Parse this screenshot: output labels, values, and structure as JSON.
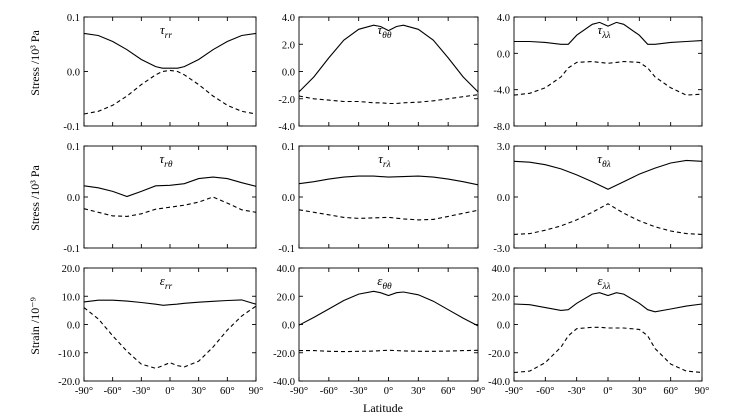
{
  "chart_data": {
    "type": "line",
    "figure": {
      "xlabel": "Latitude",
      "row_ylabels": [
        "Stress /10³ Pa",
        "Stress /10³ Pa",
        "Strain /10⁻⁹"
      ],
      "x_ticks": [
        "-90°",
        "-60°",
        "-30°",
        "0°",
        "30°",
        "60°",
        "90°"
      ],
      "xlim": [
        -90,
        90
      ]
    },
    "panels": [
      {
        "id": "tau_rr",
        "title_base": "τ",
        "title_sub": "rr",
        "ylim": [
          -0.1,
          0.1
        ],
        "y_ticks": [
          "0.1",
          "0.0",
          "-0.1"
        ],
        "y_tick_values": [
          0.1,
          0.0,
          -0.1
        ],
        "x": [
          -90,
          -75,
          -60,
          -45,
          -30,
          -15,
          -8,
          0,
          8,
          15,
          30,
          45,
          60,
          75,
          90
        ],
        "series": [
          {
            "name": "solid",
            "style": "solid",
            "values": [
              0.07,
              0.066,
              0.055,
              0.04,
              0.022,
              0.009,
              0.006,
              0.006,
              0.006,
              0.009,
              0.022,
              0.04,
              0.055,
              0.066,
              0.07
            ]
          },
          {
            "name": "dashed",
            "style": "dashed",
            "values": [
              -0.078,
              -0.073,
              -0.062,
              -0.045,
              -0.024,
              -0.006,
              0.0,
              0.002,
              0.0,
              -0.006,
              -0.024,
              -0.045,
              -0.062,
              -0.073,
              -0.078
            ]
          }
        ]
      },
      {
        "id": "tau_thth",
        "title_base": "τ",
        "title_sub": "θθ",
        "ylim": [
          -4.0,
          4.0
        ],
        "y_ticks": [
          "4.0",
          "2.0",
          "0.0",
          "-2.0",
          "-4.0"
        ],
        "y_tick_values": [
          4.0,
          2.0,
          0.0,
          -2.0,
          -4.0
        ],
        "x": [
          -90,
          -75,
          -60,
          -45,
          -30,
          -15,
          -8,
          0,
          8,
          15,
          30,
          45,
          60,
          75,
          90
        ],
        "series": [
          {
            "name": "solid",
            "style": "solid",
            "values": [
              -1.5,
              -0.4,
              1.0,
              2.3,
              3.1,
              3.4,
              3.3,
              3.0,
              3.3,
              3.4,
              3.1,
              2.3,
              1.0,
              -0.4,
              -1.5
            ]
          },
          {
            "name": "dashed",
            "style": "dashed",
            "values": [
              -1.8,
              -2.0,
              -2.1,
              -2.2,
              -2.2,
              -2.3,
              -2.3,
              -2.35,
              -2.35,
              -2.3,
              -2.25,
              -2.15,
              -2.0,
              -1.85,
              -1.7
            ]
          }
        ]
      },
      {
        "id": "tau_ll",
        "title_base": "τ",
        "title_sub": "λλ",
        "ylim": [
          -8.0,
          4.0
        ],
        "y_ticks": [
          "4.0",
          "0.0",
          "-4.0",
          "-8.0"
        ],
        "y_tick_values": [
          4.0,
          0.0,
          -4.0,
          -8.0
        ],
        "x": [
          -90,
          -75,
          -60,
          -45,
          -38,
          -30,
          -15,
          -8,
          0,
          8,
          15,
          30,
          38,
          45,
          60,
          75,
          90
        ],
        "series": [
          {
            "name": "solid",
            "style": "solid",
            "values": [
              1.3,
              1.3,
              1.2,
              1.0,
              1.0,
              2.0,
              3.2,
              3.4,
              3.0,
              3.4,
              3.2,
              2.0,
              1.0,
              1.0,
              1.2,
              1.3,
              1.4
            ]
          },
          {
            "name": "dashed",
            "style": "dashed",
            "values": [
              -4.6,
              -4.4,
              -3.8,
              -2.6,
              -1.6,
              -1.0,
              -0.9,
              -1.0,
              -1.1,
              -1.0,
              -0.9,
              -1.0,
              -1.6,
              -2.6,
              -3.8,
              -4.6,
              -4.5
            ]
          }
        ]
      },
      {
        "id": "tau_rth",
        "title_base": "τ",
        "title_sub": "rθ",
        "ylim": [
          -0.1,
          0.1
        ],
        "y_ticks": [
          "0.1",
          "0.0",
          "-0.1"
        ],
        "y_tick_values": [
          0.1,
          0.0,
          -0.1
        ],
        "x": [
          -90,
          -75,
          -60,
          -45,
          -30,
          -15,
          0,
          15,
          30,
          45,
          60,
          75,
          90
        ],
        "series": [
          {
            "name": "solid",
            "style": "solid",
            "values": [
              0.022,
              0.018,
              0.011,
              0.001,
              0.011,
              0.022,
              0.023,
              0.026,
              0.036,
              0.039,
              0.036,
              0.028,
              0.021
            ]
          },
          {
            "name": "dashed",
            "style": "dashed",
            "values": [
              -0.023,
              -0.03,
              -0.037,
              -0.038,
              -0.033,
              -0.024,
              -0.02,
              -0.016,
              -0.01,
              0.0,
              -0.012,
              -0.025,
              -0.03
            ]
          }
        ]
      },
      {
        "id": "tau_rl",
        "title_base": "τ",
        "title_sub": "rλ",
        "ylim": [
          -0.1,
          0.1
        ],
        "y_ticks": [
          "0.1",
          "0.0",
          "-0.1"
        ],
        "y_tick_values": [
          0.1,
          0.0,
          -0.1
        ],
        "x": [
          -90,
          -75,
          -60,
          -45,
          -30,
          -15,
          0,
          15,
          30,
          45,
          60,
          75,
          90
        ],
        "series": [
          {
            "name": "solid",
            "style": "solid",
            "values": [
              0.026,
              0.03,
              0.035,
              0.039,
              0.041,
              0.041,
              0.039,
              0.04,
              0.041,
              0.039,
              0.035,
              0.03,
              0.024
            ]
          },
          {
            "name": "dashed",
            "style": "dashed",
            "values": [
              -0.025,
              -0.03,
              -0.035,
              -0.04,
              -0.042,
              -0.041,
              -0.04,
              -0.043,
              -0.045,
              -0.044,
              -0.038,
              -0.032,
              -0.026
            ]
          }
        ]
      },
      {
        "id": "tau_thl",
        "title_base": "τ",
        "title_sub": "θλ",
        "ylim": [
          -3.0,
          3.0
        ],
        "y_ticks": [
          "3.0",
          "0.0",
          "-3.0"
        ],
        "y_tick_values": [
          3.0,
          0.0,
          -3.0
        ],
        "x": [
          -90,
          -75,
          -60,
          -45,
          -30,
          -15,
          0,
          15,
          30,
          45,
          60,
          75,
          90
        ],
        "series": [
          {
            "name": "solid",
            "style": "solid",
            "values": [
              2.1,
              2.05,
              1.9,
              1.65,
              1.3,
              0.9,
              0.45,
              0.9,
              1.35,
              1.7,
              2.0,
              2.15,
              2.1
            ]
          },
          {
            "name": "dashed",
            "style": "dashed",
            "values": [
              -2.2,
              -2.15,
              -1.95,
              -1.7,
              -1.35,
              -0.9,
              -0.4,
              -0.95,
              -1.4,
              -1.75,
              -2.0,
              -2.15,
              -2.2
            ]
          }
        ]
      },
      {
        "id": "eps_rr",
        "title_base": "ε",
        "title_sub": "rr",
        "ylim": [
          -20,
          20
        ],
        "y_ticks": [
          "20.0",
          "10.0",
          "0.0",
          "-10.0",
          "-20.0"
        ],
        "y_tick_values": [
          20,
          10,
          0,
          -10,
          -20
        ],
        "x": [
          -90,
          -75,
          -60,
          -45,
          -30,
          -15,
          -7,
          0,
          7,
          15,
          30,
          45,
          60,
          75,
          90
        ],
        "series": [
          {
            "name": "solid",
            "style": "solid",
            "values": [
              8.0,
              8.6,
              8.6,
              8.3,
              7.8,
              7.2,
              6.8,
              7.0,
              7.2,
              7.5,
              7.9,
              8.2,
              8.5,
              8.7,
              7.2
            ]
          },
          {
            "name": "dashed",
            "style": "dashed",
            "values": [
              6.0,
              2.0,
              -4.0,
              -9.5,
              -14.0,
              -15.5,
              -14.5,
              -13.5,
              -14.5,
              -15.0,
              -13.0,
              -8.0,
              -2.0,
              3.0,
              6.5
            ]
          }
        ]
      },
      {
        "id": "eps_thth",
        "title_base": "ε",
        "title_sub": "θθ",
        "ylim": [
          -40,
          40
        ],
        "y_ticks": [
          "40.0",
          "20.0",
          "0.0",
          "-20.0",
          "-40.0"
        ],
        "y_tick_values": [
          40,
          20,
          0,
          -20,
          -40
        ],
        "x": [
          -90,
          -75,
          -60,
          -45,
          -30,
          -15,
          -8,
          0,
          8,
          15,
          30,
          45,
          60,
          75,
          90
        ],
        "series": [
          {
            "name": "solid",
            "style": "solid",
            "values": [
              -0.5,
              5.0,
              11.0,
              17.0,
              21.5,
              23.5,
              22.5,
              20.5,
              22.5,
              23.0,
              21.0,
              16.5,
              10.5,
              4.5,
              -1.0
            ]
          },
          {
            "name": "dashed",
            "style": "dashed",
            "values": [
              -18.5,
              -18.5,
              -19.0,
              -19.2,
              -19.0,
              -18.8,
              -18.5,
              -18.3,
              -18.5,
              -18.7,
              -19.0,
              -19.0,
              -18.8,
              -18.5,
              -18.3
            ]
          }
        ]
      },
      {
        "id": "eps_ll",
        "title_base": "ε",
        "title_sub": "λλ",
        "ylim": [
          -40,
          40
        ],
        "y_ticks": [
          "40.0",
          "20.0",
          "0.0",
          "-20.0",
          "-40.0"
        ],
        "y_tick_values": [
          40,
          20,
          0,
          -20,
          -40
        ],
        "x": [
          -90,
          -75,
          -60,
          -45,
          -38,
          -30,
          -15,
          -8,
          0,
          8,
          15,
          30,
          38,
          45,
          60,
          75,
          90
        ],
        "series": [
          {
            "name": "solid",
            "style": "solid",
            "values": [
              14.5,
              14.0,
              12.0,
              10.0,
              10.5,
              15.0,
              21.5,
              22.5,
              20.5,
              22.5,
              21.5,
              15.0,
              10.5,
              9.0,
              11.0,
              13.0,
              14.5
            ]
          },
          {
            "name": "dashed",
            "style": "dashed",
            "values": [
              -34.0,
              -33.0,
              -27.0,
              -16.0,
              -8.0,
              -3.0,
              -2.0,
              -2.0,
              -2.5,
              -2.5,
              -2.5,
              -3.5,
              -8.0,
              -17.0,
              -28.0,
              -33.0,
              -34.0
            ]
          }
        ]
      }
    ]
  }
}
